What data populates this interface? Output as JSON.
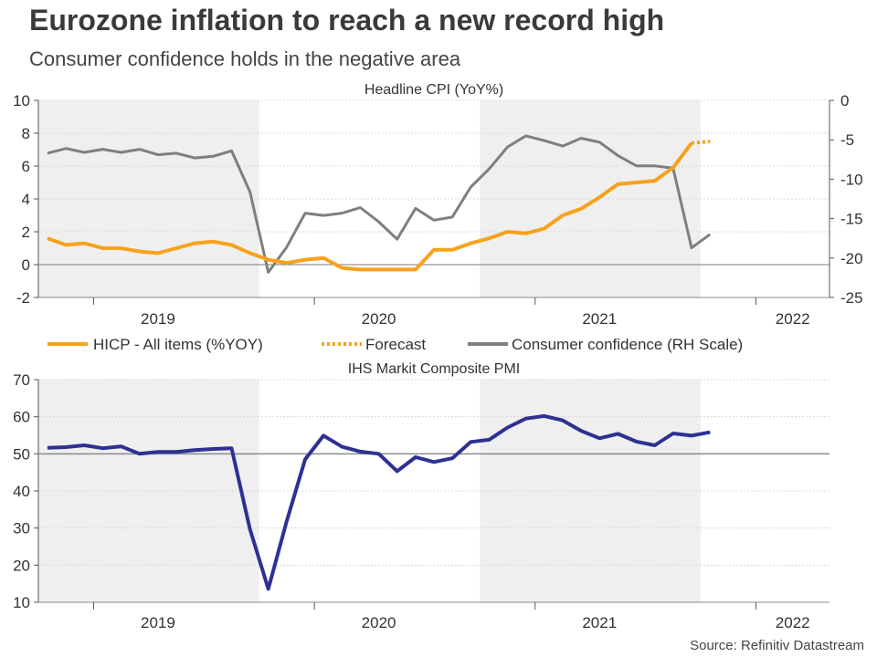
{
  "header": {
    "title": "Eurozone inflation to reach a new record high",
    "subtitle": "Consumer confidence holds in the negative area",
    "source": "Source: Refinitiv Datastream"
  },
  "colors": {
    "hicp": "#f7a21b",
    "confidence": "#7f7f7f",
    "pmi": "#2e3192",
    "shade": "#efefef"
  },
  "chart_data": [
    {
      "type": "line",
      "title": "Headline CPI (YoY%)",
      "x_start": "2018-10",
      "x_end": "2022-05",
      "ylim_left": [
        -2,
        10
      ],
      "yticks_left": [
        "-2",
        "0",
        "2",
        "4",
        "6",
        "8",
        "10"
      ],
      "ylim_right": [
        -25,
        0
      ],
      "yticks_right": [
        "-25",
        "-20",
        "-15",
        "-10",
        "-5",
        "0"
      ],
      "year_labels": [
        {
          "label": "2019",
          "month": 6.5
        },
        {
          "label": "2020",
          "month": 18.5
        },
        {
          "label": "2021",
          "month": 30.5
        },
        {
          "label": "2022",
          "month": 41
        }
      ],
      "shaded_month_ranges": [
        [
          0,
          12
        ],
        [
          24,
          36
        ]
      ],
      "legend": {
        "hicp": "HICP - All items (%YOY)",
        "forecast": "Forecast",
        "confidence": "Consumer confidence (RH Scale)"
      },
      "series": [
        {
          "name": "HICP - All items (%YOY)",
          "axis": "left",
          "x_start_index": 0,
          "values": [
            1.6,
            1.2,
            1.3,
            1.0,
            1.0,
            0.8,
            0.7,
            1.0,
            1.3,
            1.4,
            1.2,
            0.7,
            0.3,
            0.1,
            0.3,
            0.4,
            -0.2,
            -0.3,
            -0.3,
            -0.3,
            -0.3,
            0.9,
            0.9,
            1.3,
            1.6,
            2.0,
            1.9,
            2.2,
            3.0,
            3.4,
            4.1,
            4.9,
            5.0,
            5.1,
            5.9,
            7.4
          ]
        },
        {
          "name": "Forecast",
          "axis": "left",
          "x_start_index": 35,
          "style": "dotted",
          "values": [
            7.4,
            7.5
          ]
        },
        {
          "name": "Consumer confidence (RH Scale)",
          "axis": "right",
          "x_start_index": 0,
          "values": [
            -6.7,
            -6.1,
            -6.6,
            -6.2,
            -6.6,
            -6.2,
            -6.9,
            -6.7,
            -7.3,
            -7.1,
            -6.4,
            -11.6,
            -21.8,
            -18.6,
            -14.3,
            -14.6,
            -14.3,
            -13.6,
            -15.4,
            -17.6,
            -13.7,
            -15.2,
            -14.8,
            -11.0,
            -8.7,
            -5.9,
            -4.5,
            -5.1,
            -5.8,
            -4.8,
            -5.3,
            -7.0,
            -8.3,
            -8.3,
            -8.6,
            -18.7,
            -17.0
          ]
        }
      ]
    },
    {
      "type": "line",
      "title": "IHS Markit Composite PMI",
      "x_start": "2018-10",
      "x_end": "2022-05",
      "ylim": [
        10,
        70
      ],
      "yticks": [
        "10",
        "20",
        "30",
        "40",
        "50",
        "60",
        "70"
      ],
      "reference_line": 50,
      "year_labels": [
        {
          "label": "2019",
          "month": 6.5
        },
        {
          "label": "2020",
          "month": 18.5
        },
        {
          "label": "2021",
          "month": 30.5
        },
        {
          "label": "2022",
          "month": 41
        }
      ],
      "shaded_month_ranges": [
        [
          0,
          12
        ],
        [
          24,
          36
        ]
      ],
      "series": [
        {
          "name": "IHS Markit Composite PMI",
          "x_start_index": 0,
          "values": [
            51.6,
            51.8,
            52.3,
            51.5,
            52.0,
            50.0,
            50.5,
            50.5,
            51.0,
            51.3,
            51.5,
            29.7,
            13.6,
            31.9,
            48.5,
            54.9,
            51.9,
            50.6,
            50.0,
            45.3,
            49.1,
            47.8,
            48.8,
            53.2,
            53.8,
            57.1,
            59.5,
            60.2,
            59.0,
            56.2,
            54.2,
            55.4,
            53.3,
            52.3,
            55.5,
            54.9,
            55.8
          ]
        }
      ]
    }
  ]
}
